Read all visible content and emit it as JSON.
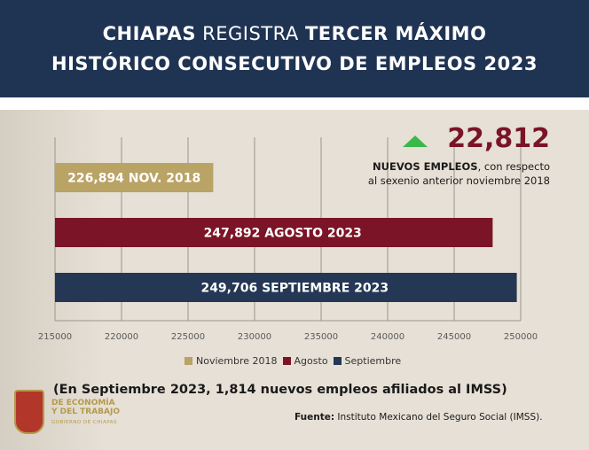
{
  "header": {
    "line1_bold": "CHIAPAS",
    "line1_regular": " REGISTRA ",
    "line1_bold2": "TERCER MÁXIMO",
    "line2": "HISTÓRICO CONSECUTIVO DE EMPLEOS 2023"
  },
  "callout": {
    "value": "22,812",
    "line1_bold": "NUEVOS EMPLEOS",
    "line1_rest": ", con respecto",
    "line2": "al sexenio anterior noviembre 2018",
    "arrow_color": "#3bb84a"
  },
  "chart_data": {
    "type": "bar",
    "orientation": "horizontal",
    "categories": [
      "Noviembre 2018",
      "Agosto",
      "Septiembre"
    ],
    "values": [
      226894,
      247892,
      249706
    ],
    "bar_labels": [
      "226,894 NOV. 2018",
      "247,892 AGOSTO 2023",
      "249,706 SEPTIEMBRE 2023"
    ],
    "colors": [
      "#b9a365",
      "#7b1426",
      "#243755"
    ],
    "xlim": [
      215000,
      250000
    ],
    "xticks": [
      "215000",
      "220000",
      "225000",
      "230000",
      "235000",
      "240000",
      "245000",
      "250000"
    ],
    "xtick_values": [
      215000,
      220000,
      225000,
      230000,
      235000,
      240000,
      245000,
      250000
    ],
    "grid": true,
    "legend": [
      "Noviembre 2018",
      "Agosto",
      "Septiembre"
    ],
    "legend_position": "bottom"
  },
  "note": "(En Septiembre 2023, 1,814 nuevos empleos afiliados al IMSS)",
  "source": {
    "label": "Fuente:",
    "text": " Instituto Mexicano del Seguro Social (IMSS)."
  },
  "logo": {
    "line1": "DE ECONOMÍA",
    "line2": "Y DEL TRABAJO",
    "line3": "GOBIERNO DE CHIAPAS"
  }
}
